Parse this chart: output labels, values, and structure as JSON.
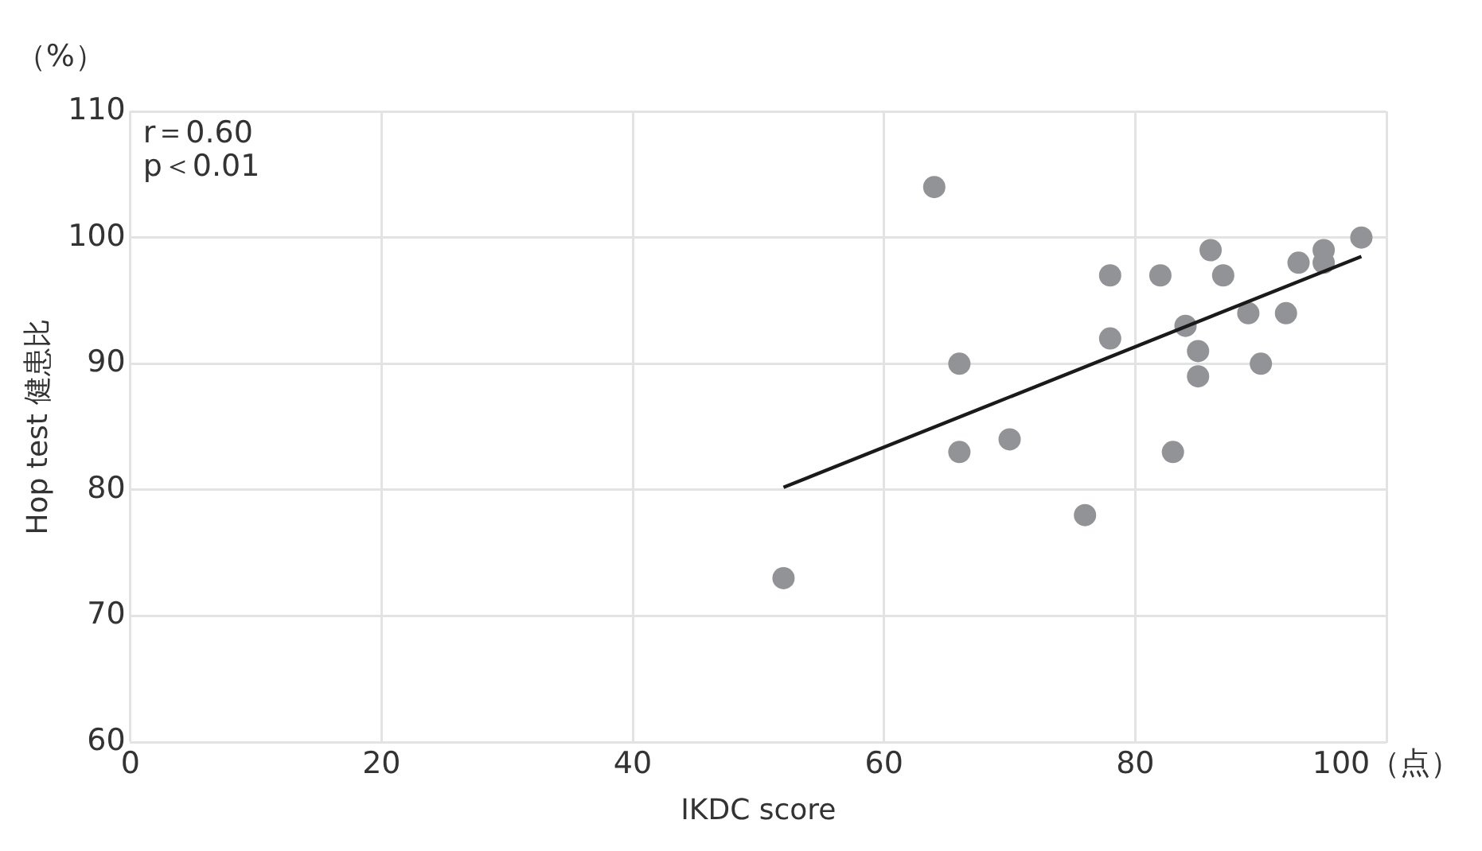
{
  "chart_data": {
    "type": "scatter",
    "xlabel": "IKDC score",
    "ylabel": "Hop test 健患比",
    "xlim": [
      0,
      100
    ],
    "xticks": [
      0,
      20,
      40,
      60,
      80,
      {
        "value": 100,
        "label": "100（点）"
      }
    ],
    "ylim": [
      60,
      110
    ],
    "yticks": [
      60,
      70,
      80,
      90,
      100,
      110
    ],
    "grid": true,
    "legend": false,
    "marker": "circle",
    "annotations": [
      "（%）",
      "r＝0.60\np＜0.01"
    ],
    "series": [
      {
        "color": "#929397",
        "x": [
          52,
          64,
          66,
          66,
          70,
          76,
          78,
          78,
          82,
          83,
          84,
          85,
          85,
          86,
          87,
          89,
          90,
          92,
          93,
          95,
          95,
          98
        ],
        "values": [
          73,
          104,
          90,
          83,
          84,
          78,
          97,
          92,
          97,
          83,
          93,
          91,
          89,
          99,
          97,
          94,
          90,
          94,
          98,
          99,
          98,
          100
        ]
      },
      {
        "type": "line",
        "color": "#1a1a1a",
        "x": [
          52,
          98
        ],
        "values": [
          80.2,
          98.5
        ],
        "marker": "none",
        "line_style": "solid"
      }
    ]
  }
}
